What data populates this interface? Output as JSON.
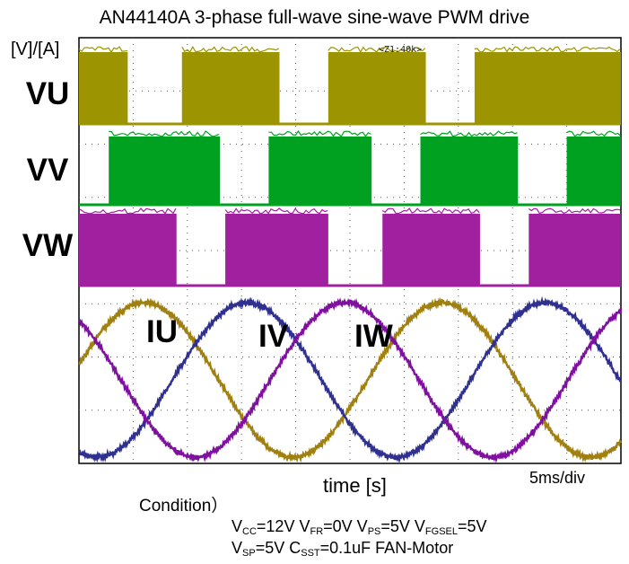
{
  "chart_data": {
    "type": "line",
    "title": "AN44140A 3-phase full-wave sine-wave PWM drive",
    "ylabel": "[V]/[A]",
    "xlabel": "time [s]",
    "time_scale": "5ms/div",
    "zoom_label": "<Z1:40k>",
    "grid": true,
    "x_divisions": 10,
    "digital_series": [
      {
        "name": "VU",
        "color": "#9c9400",
        "high_intervals": [
          [
            0.0,
            0.9
          ],
          [
            1.9,
            3.7
          ],
          [
            4.6,
            6.4
          ],
          [
            7.3,
            10.0
          ]
        ]
      },
      {
        "name": "VV",
        "color": "#00a020",
        "high_intervals": [
          [
            0.55,
            2.6
          ],
          [
            3.5,
            5.4
          ],
          [
            6.3,
            8.1
          ],
          [
            9.0,
            10.0
          ]
        ]
      },
      {
        "name": "VW",
        "color": "#a020a0",
        "high_intervals": [
          [
            0.0,
            1.8
          ],
          [
            2.7,
            4.6
          ],
          [
            5.6,
            7.4
          ],
          [
            8.3,
            10.0
          ]
        ]
      }
    ],
    "analog_series": [
      {
        "name": "IU",
        "color": "#a08010",
        "period_div": 5.5,
        "peak_div": 1.2,
        "amplitude": 1.0
      },
      {
        "name": "IV",
        "color": "#303090",
        "period_div": 5.5,
        "peak_div": 3.1,
        "amplitude": 1.0
      },
      {
        "name": "IW",
        "color": "#8010a0",
        "period_div": 5.5,
        "peak_div": 4.9,
        "amplitude": 1.0
      }
    ]
  },
  "labels": {
    "units": "[V]/[A]",
    "vu": "VU",
    "vv": "VV",
    "vw": "VW",
    "iu": "IU",
    "iv": "IV",
    "iw": "IW",
    "time_axis": "time [s]",
    "scale": "5ms/div",
    "condition": "Condition）"
  },
  "conditions": {
    "line1": [
      {
        "base": "V",
        "sub": "CC",
        "rest": "=12V "
      },
      {
        "base": "V",
        "sub": "FR",
        "rest": "=0V "
      },
      {
        "base": "V",
        "sub": "PS",
        "rest": "=5V "
      },
      {
        "base": "V",
        "sub": "FGSEL",
        "rest": "=5V"
      }
    ],
    "line2": [
      {
        "base": "V",
        "sub": "SP",
        "rest": "=5V "
      },
      {
        "base": "C",
        "sub": "SST",
        "rest": "=0.1uF  FAN-Motor"
      }
    ]
  }
}
